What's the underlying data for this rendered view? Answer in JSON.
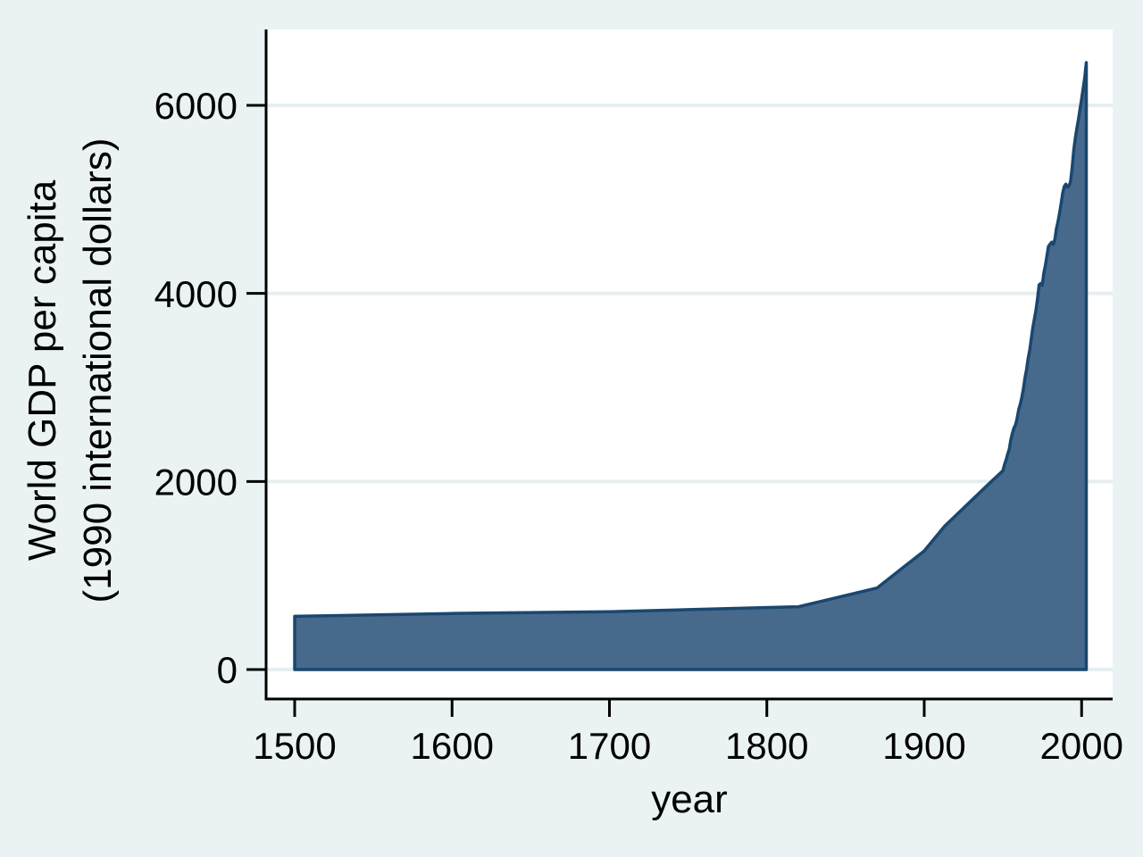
{
  "figure": {
    "background_color": "#eaf2f3",
    "plot_background_color": "#ffffff",
    "axis_color": "#000000",
    "grid_color": "#e6eef0",
    "text_color": "#000000"
  },
  "chart_data": {
    "type": "area",
    "title": "",
    "xlabel": "year",
    "ylabel_lines": [
      "World GDP per capita",
      "(1990 international dollars)"
    ],
    "x_ticks": [
      1500,
      1600,
      1700,
      1800,
      1900,
      2000
    ],
    "y_ticks": [
      0,
      2000,
      4000,
      6000
    ],
    "xlim": [
      1482,
      2020
    ],
    "ylim": [
      0,
      6810
    ],
    "grid": "horizontal",
    "legend": "none",
    "area_fill_color": "#47698c",
    "area_stroke_color": "#1a476f",
    "series": [
      {
        "name": "World GDP per capita (1990 international dollars)",
        "points": [
          [
            1500,
            566
          ],
          [
            1600,
            596
          ],
          [
            1700,
            615
          ],
          [
            1820,
            667
          ],
          [
            1870,
            867
          ],
          [
            1900,
            1262
          ],
          [
            1913,
            1525
          ],
          [
            1940,
            1958
          ],
          [
            1950,
            2114
          ],
          [
            1951,
            2180
          ],
          [
            1952,
            2230
          ],
          [
            1953,
            2290
          ],
          [
            1954,
            2340
          ],
          [
            1955,
            2440
          ],
          [
            1956,
            2512
          ],
          [
            1957,
            2570
          ],
          [
            1958,
            2600
          ],
          [
            1959,
            2670
          ],
          [
            1960,
            2765
          ],
          [
            1961,
            2820
          ],
          [
            1962,
            2895
          ],
          [
            1963,
            2980
          ],
          [
            1964,
            3100
          ],
          [
            1965,
            3190
          ],
          [
            1966,
            3305
          ],
          [
            1967,
            3395
          ],
          [
            1968,
            3510
          ],
          [
            1969,
            3635
          ],
          [
            1970,
            3730
          ],
          [
            1971,
            3820
          ],
          [
            1972,
            3945
          ],
          [
            1973,
            4091
          ],
          [
            1974,
            4105
          ],
          [
            1975,
            4088
          ],
          [
            1976,
            4213
          ],
          [
            1977,
            4300
          ],
          [
            1978,
            4405
          ],
          [
            1979,
            4502
          ],
          [
            1980,
            4525
          ],
          [
            1981,
            4545
          ],
          [
            1982,
            4522
          ],
          [
            1983,
            4575
          ],
          [
            1984,
            4686
          ],
          [
            1985,
            4764
          ],
          [
            1986,
            4857
          ],
          [
            1987,
            4954
          ],
          [
            1988,
            5070
          ],
          [
            1989,
            5139
          ],
          [
            1990,
            5162
          ],
          [
            1991,
            5130
          ],
          [
            1992,
            5145
          ],
          [
            1993,
            5190
          ],
          [
            1994,
            5340
          ],
          [
            1995,
            5520
          ],
          [
            1996,
            5650
          ],
          [
            1997,
            5760
          ],
          [
            1998,
            5850
          ],
          [
            1999,
            5960
          ],
          [
            2000,
            6070
          ],
          [
            2001,
            6180
          ],
          [
            2002,
            6300
          ],
          [
            2003,
            6455
          ]
        ]
      }
    ]
  }
}
